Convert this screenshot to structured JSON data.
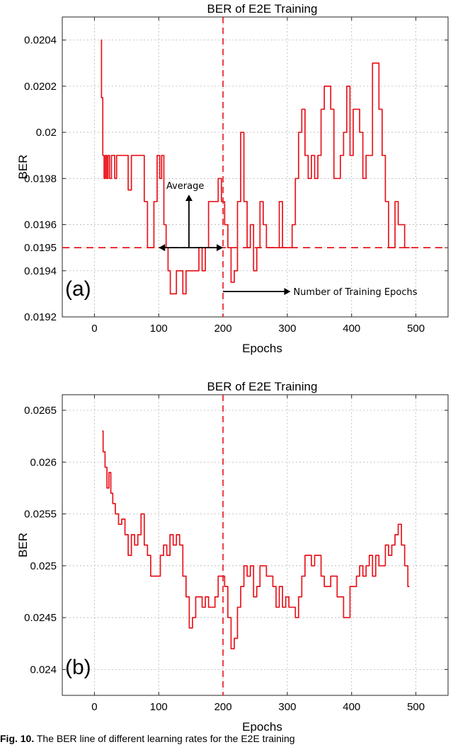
{
  "figure": {
    "caption_label": "Fig. 10.",
    "caption_text": " The BER line of different learning rates for the E2E training"
  },
  "chart_data": [
    {
      "type": "line",
      "panel_label": "(a)",
      "title": "BER of E2E Training",
      "xlabel": "Epochs",
      "ylabel": "BER",
      "xlim": [
        -50,
        550
      ],
      "ylim": [
        0.0192,
        0.0205
      ],
      "xticks": [
        0,
        100,
        200,
        300,
        400,
        500
      ],
      "xtick_labels": [
        "0",
        "100",
        "200",
        "300",
        "400",
        "500"
      ],
      "yticks": [
        0.0192,
        0.0194,
        0.0195,
        0.0196,
        0.0198,
        0.02,
        0.0202,
        0.0204
      ],
      "ytick_labels": [
        "0.0192",
        "0.0194",
        "0.0195",
        "0.0196",
        "0.0198",
        "0.02",
        "0.0202",
        "0.0204"
      ],
      "grid": true,
      "color": "#e8141c",
      "vline_x": 200,
      "hline_y": 0.0195,
      "annotations": {
        "average": "Average",
        "epochs": "Number of Training Epochs"
      },
      "series": [
        {
          "x": [
            10,
            12,
            14,
            16,
            18,
            20,
            22,
            25,
            28,
            30,
            33,
            36,
            40,
            45,
            50,
            55,
            60,
            65,
            70,
            75,
            80,
            85,
            90,
            95,
            100,
            103,
            106,
            110,
            113,
            116,
            120,
            125,
            130,
            135,
            140,
            145,
            150,
            155,
            160,
            165,
            170,
            175,
            180,
            185,
            190,
            195,
            200,
            205,
            210,
            215,
            220,
            225,
            230,
            235,
            240,
            245,
            250,
            255,
            260,
            265,
            270,
            275,
            280,
            285,
            290,
            295,
            300,
            305,
            310,
            315,
            320,
            325,
            330,
            335,
            340,
            345,
            350,
            355,
            360,
            365,
            370,
            375,
            380,
            385,
            390,
            395,
            400,
            405,
            410,
            415,
            420,
            425,
            430,
            435,
            440,
            445,
            450,
            455,
            460,
            465,
            470,
            475,
            480,
            485,
            490
          ],
          "y": [
            0.0204,
            0.02015,
            0.0199,
            0.0198,
            0.0199,
            0.0198,
            0.0199,
            0.0198,
            0.0199,
            0.0199,
            0.0198,
            0.0199,
            0.0199,
            0.0199,
            0.0199,
            0.01975,
            0.0199,
            0.0199,
            0.0199,
            0.0199,
            0.0197,
            0.0195,
            0.0195,
            0.0197,
            0.0199,
            0.0198,
            0.0199,
            0.0196,
            0.0195,
            0.0194,
            0.0193,
            0.0193,
            0.0194,
            0.0194,
            0.0193,
            0.0194,
            0.0194,
            0.0194,
            0.0194,
            0.0195,
            0.0194,
            0.0195,
            0.0197,
            0.0197,
            0.0197,
            0.0198,
            0.0197,
            0.0196,
            0.0195,
            0.01935,
            0.0194,
            0.0197,
            0.02,
            0.0197,
            0.0195,
            0.0196,
            0.0194,
            0.0195,
            0.0197,
            0.0196,
            0.0195,
            0.0195,
            0.0195,
            0.0195,
            0.0197,
            0.0195,
            0.0195,
            0.0195,
            0.0196,
            0.0198,
            0.02,
            0.0201,
            0.0199,
            0.0198,
            0.0199,
            0.0198,
            0.0199,
            0.0201,
            0.0202,
            0.0202,
            0.0201,
            0.0198,
            0.0198,
            0.0199,
            0.02,
            0.0202,
            0.0199,
            0.0201,
            0.0201,
            0.02,
            0.0198,
            0.0199,
            0.0199,
            0.0203,
            0.0203,
            0.0201,
            0.0199,
            0.0197,
            0.0195,
            0.0195,
            0.0197,
            0.0196,
            0.0196,
            0.0195,
            0.0195
          ]
        }
      ]
    },
    {
      "type": "line",
      "panel_label": "(b)",
      "title": "BER of E2E Training",
      "xlabel": "Epochs",
      "ylabel": "BER",
      "xlim": [
        -50,
        550
      ],
      "ylim": [
        0.02375,
        0.02665
      ],
      "xticks": [
        0,
        100,
        200,
        300,
        400,
        500
      ],
      "xtick_labels": [
        "0",
        "100",
        "200",
        "300",
        "400",
        "500"
      ],
      "yticks": [
        0.024,
        0.0245,
        0.025,
        0.0255,
        0.026,
        0.0265
      ],
      "ytick_labels": [
        "0.024",
        "0.0245",
        "0.025",
        "0.0255",
        "0.026",
        "0.0265"
      ],
      "grid": true,
      "color": "#e8141c",
      "vline_x": 200,
      "series": [
        {
          "x": [
            12,
            15,
            18,
            21,
            24,
            27,
            30,
            35,
            40,
            45,
            50,
            55,
            60,
            65,
            70,
            75,
            80,
            85,
            90,
            95,
            100,
            105,
            110,
            115,
            120,
            125,
            130,
            135,
            140,
            145,
            150,
            155,
            160,
            165,
            170,
            175,
            180,
            185,
            190,
            195,
            200,
            205,
            210,
            215,
            220,
            225,
            230,
            235,
            240,
            245,
            250,
            255,
            260,
            265,
            270,
            275,
            280,
            285,
            290,
            295,
            300,
            305,
            310,
            315,
            320,
            325,
            330,
            335,
            340,
            345,
            350,
            355,
            360,
            365,
            370,
            375,
            380,
            385,
            390,
            395,
            400,
            405,
            410,
            415,
            420,
            425,
            430,
            435,
            440,
            445,
            450,
            455,
            460,
            465,
            470,
            475,
            480,
            485,
            490
          ],
          "y": [
            0.0263,
            0.0261,
            0.02595,
            0.02575,
            0.0259,
            0.0257,
            0.0256,
            0.0255,
            0.0254,
            0.02545,
            0.0253,
            0.0251,
            0.0253,
            0.0252,
            0.0253,
            0.0255,
            0.0252,
            0.0251,
            0.0249,
            0.0249,
            0.0249,
            0.0251,
            0.0252,
            0.0251,
            0.0253,
            0.0252,
            0.0253,
            0.0252,
            0.0249,
            0.0247,
            0.0244,
            0.0245,
            0.0247,
            0.0247,
            0.0246,
            0.0247,
            0.0246,
            0.0246,
            0.0247,
            0.0249,
            0.0249,
            0.0248,
            0.0245,
            0.0242,
            0.0243,
            0.0246,
            0.0248,
            0.025,
            0.0249,
            0.025,
            0.0247,
            0.0248,
            0.025,
            0.025,
            0.0249,
            0.0249,
            0.0248,
            0.0246,
            0.0248,
            0.0246,
            0.0247,
            0.0246,
            0.0246,
            0.0245,
            0.0247,
            0.0249,
            0.0251,
            0.0251,
            0.025,
            0.0251,
            0.0251,
            0.0249,
            0.0248,
            0.0248,
            0.0249,
            0.0249,
            0.0247,
            0.0247,
            0.0245,
            0.0245,
            0.0248,
            0.0248,
            0.0249,
            0.025,
            0.0249,
            0.025,
            0.0251,
            0.0249,
            0.0251,
            0.025,
            0.025,
            0.0252,
            0.0251,
            0.0252,
            0.0253,
            0.0254,
            0.0252,
            0.025,
            0.0248
          ]
        }
      ]
    }
  ]
}
